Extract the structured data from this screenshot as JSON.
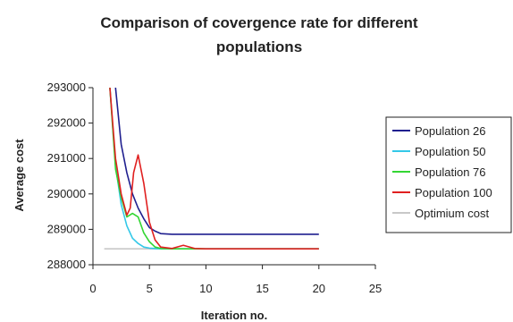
{
  "chart_data": {
    "type": "line",
    "title_line1": "Comparison of covergence rate for different",
    "title_line2": "populations",
    "xlabel": "Iteration no.",
    "ylabel": "Average cost",
    "xlim": [
      0,
      25
    ],
    "ylim": [
      288000,
      293000
    ],
    "xticks": [
      0,
      5,
      10,
      15,
      20,
      25
    ],
    "yticks": [
      288000,
      289000,
      290000,
      291000,
      292000,
      293000
    ],
    "grid": false,
    "legend_position": "right",
    "series": [
      {
        "name": "Population 26",
        "color": "#1f1f8f",
        "x": [
          2,
          2.5,
          3,
          3.5,
          4,
          4.5,
          5,
          5.5,
          6,
          7,
          8,
          10,
          15,
          20
        ],
        "y": [
          293000,
          291400,
          290600,
          290000,
          289600,
          289300,
          289050,
          288950,
          288880,
          288860,
          288860,
          288860,
          288860,
          288860
        ]
      },
      {
        "name": "Population 50",
        "color": "#33c8e8",
        "x": [
          1.5,
          2,
          2.5,
          3,
          3.5,
          4,
          4.5,
          5,
          5.5,
          6,
          7,
          8,
          10,
          20
        ],
        "y": [
          293000,
          290800,
          289700,
          289100,
          288750,
          288600,
          288500,
          288470,
          288460,
          288450,
          288450,
          288450,
          288450,
          288450
        ]
      },
      {
        "name": "Population 76",
        "color": "#33d633",
        "x": [
          1.5,
          2,
          2.5,
          3,
          3.5,
          4,
          4.5,
          5,
          5.5,
          6,
          7,
          8,
          10,
          20
        ],
        "y": [
          293000,
          290700,
          289900,
          289350,
          289450,
          289350,
          288900,
          288650,
          288500,
          288460,
          288450,
          288450,
          288450,
          288450
        ]
      },
      {
        "name": "Population 100",
        "color": "#e02020",
        "x": [
          1.5,
          2,
          2.5,
          3,
          3.3,
          3.6,
          4,
          4.5,
          5,
          5.5,
          6,
          7,
          8,
          9,
          10,
          15,
          20
        ],
        "y": [
          293000,
          291000,
          290000,
          289400,
          289600,
          290600,
          291100,
          290300,
          289200,
          288700,
          288500,
          288460,
          288550,
          288460,
          288450,
          288450,
          288450
        ]
      },
      {
        "name": "Optimium cost",
        "color": "#c8c8c8",
        "x": [
          1,
          20
        ],
        "y": [
          288450,
          288450
        ]
      }
    ]
  }
}
